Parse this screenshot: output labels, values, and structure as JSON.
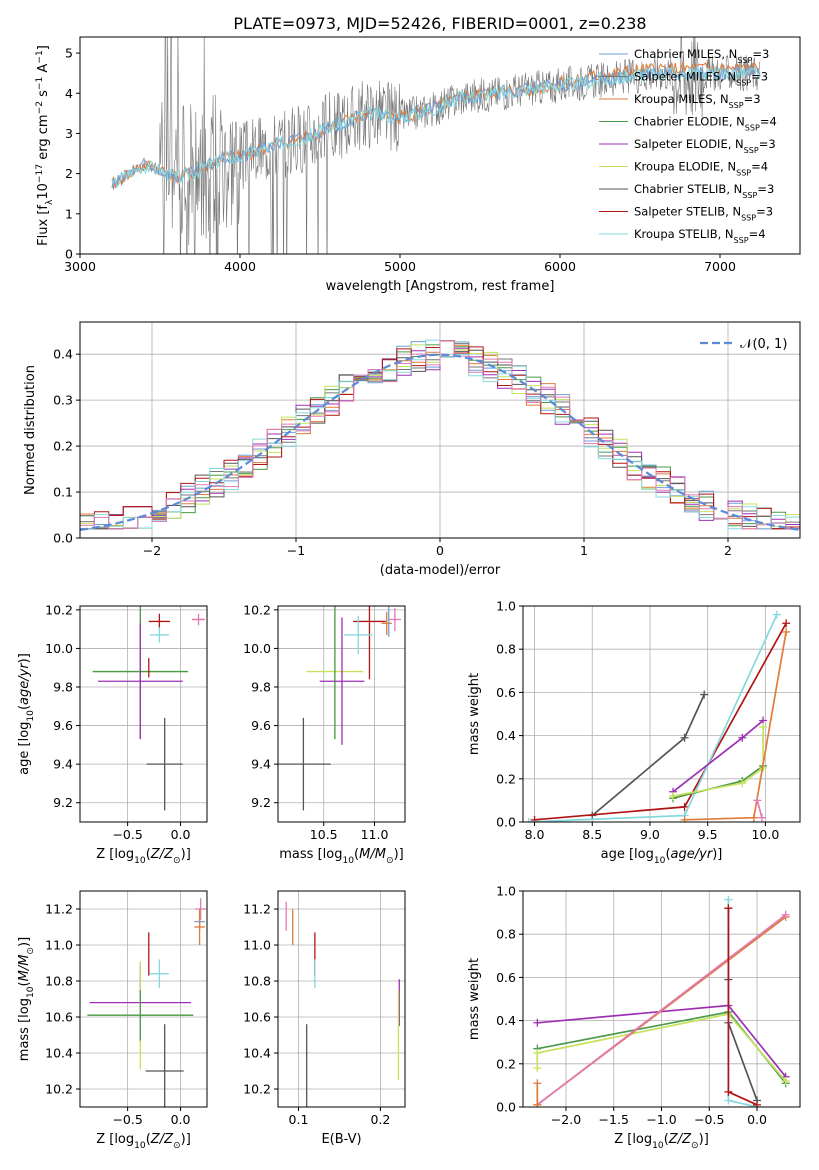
{
  "title": "PLATE=0973, MJD=52426, FIBERID=0001, z=0.238",
  "colors": {
    "Chabrier MILES": "#6f9fd8",
    "Salpeter MILES": "#777777",
    "Kroupa MILES": "#e07b39",
    "Chabrier ELODIE": "#4a9a4a",
    "Salpeter ELODIE": "#9b30b5",
    "Kroupa ELODIE": "#c6e25c",
    "Chabrier STELIB": "#555555",
    "Salpeter STELIB": "#b01515",
    "Kroupa STELIB": "#86d8df",
    "gaussian": "#5a8ad8",
    "pink": "#e07bb5",
    "grid": "#b0b0b0"
  },
  "legend_labels": {
    "Chabrier MILES": [
      "Chabrier MILES, N",
      "SSP",
      "=3"
    ],
    "Salpeter MILES": [
      "Salpeter MILES, N",
      "SSP",
      "=3"
    ],
    "Kroupa MILES": [
      "Kroupa MILES, N",
      "SSP",
      "=3"
    ],
    "Chabrier ELODIE": [
      "Chabrier ELODIE, N",
      "SSP",
      "=4"
    ],
    "Salpeter ELODIE": [
      "Salpeter ELODIE, N",
      "SSP",
      "=3"
    ],
    "Kroupa ELODIE": [
      "Kroupa ELODIE, N",
      "SSP",
      "=4"
    ],
    "Chabrier STELIB": [
      "Chabrier STELIB, N",
      "SSP",
      "=3"
    ],
    "Salpeter STELIB": [
      "Salpeter STELIB, N",
      "SSP",
      "=3"
    ],
    "Kroupa STELIB": [
      "Kroupa STELIB, N",
      "SSP",
      "=4"
    ]
  },
  "chart_data": [
    {
      "id": "spectrum",
      "type": "line",
      "title": "PLATE=0973, MJD=52426, FIBERID=0001, z=0.238",
      "xlabel": "wavelength [Angstrom, rest frame]",
      "ylabel": "Flux [f_λ 10^-17 erg cm^-2 s^-1 A^-1]",
      "xlim": [
        3000,
        7500
      ],
      "ylim": [
        0,
        5.4
      ],
      "xticks": [
        3000,
        4000,
        5000,
        6000,
        7000
      ],
      "yticks": [
        0,
        1,
        2,
        3,
        4,
        5
      ],
      "grid": false,
      "legend": "top-right",
      "observed_trend": {
        "x": [
          3200,
          3300,
          3400,
          3500,
          3600,
          3700,
          3800,
          3900,
          4000,
          4200,
          4400,
          4600,
          4800,
          5000,
          5200,
          5400,
          5600,
          5800,
          6000,
          6200,
          6400,
          6600,
          6800,
          7000,
          7200
        ],
        "y": [
          1.7,
          2.0,
          2.2,
          2.1,
          1.9,
          2.0,
          2.2,
          2.4,
          2.4,
          2.7,
          2.9,
          3.2,
          3.5,
          3.4,
          3.6,
          3.9,
          4.0,
          4.1,
          4.2,
          4.3,
          4.4,
          4.5,
          4.5,
          4.5,
          4.5
        ]
      },
      "model_series_order": [
        "Kroupa MILES",
        "Chabrier MILES",
        "Kroupa STELIB"
      ]
    },
    {
      "id": "residuals",
      "type": "histogram",
      "xlabel": "(data-model)/error",
      "ylabel": "Normed distribution",
      "xlim": [
        -2.5,
        2.5
      ],
      "ylim": [
        0,
        0.47
      ],
      "xticks": [
        -2,
        -1,
        0,
        1,
        2
      ],
      "yticks": [
        0.0,
        0.1,
        0.2,
        0.3,
        0.4
      ],
      "grid": true,
      "legend": "top-right",
      "legend_label": "𝒩(0, 1)",
      "bin_width": 0.1,
      "series_order": [
        "Chabrier MILES",
        "Salpeter MILES",
        "Kroupa MILES",
        "Chabrier ELODIE",
        "Salpeter ELODIE",
        "Kroupa ELODIE",
        "Chabrier STELIB",
        "Salpeter STELIB",
        "Kroupa STELIB",
        "pink"
      ]
    },
    {
      "id": "age-vs-Z",
      "type": "errorbar",
      "xlabel": "Z [log10(Z/Z⊙)]",
      "ylabel": "age [log10(age/yr)]",
      "xlim": [
        -0.95,
        0.25
      ],
      "ylim": [
        9.1,
        10.22
      ],
      "xticks": [
        -0.5,
        0.0
      ],
      "yticks": [
        9.2,
        9.4,
        9.6,
        9.8,
        10.0,
        10.2
      ],
      "grid": true,
      "points": [
        {
          "series": "Salpeter STELIB",
          "x": -0.2,
          "xerr": 0.1,
          "y": 10.14,
          "yerr": 0.04
        },
        {
          "series": "Kroupa STELIB",
          "x": -0.2,
          "xerr": 0.09,
          "y": 10.07,
          "yerr": 0.04
        },
        {
          "series": "Kroupa MILES",
          "x": 0.17,
          "xerr": 0.06,
          "y": 10.15,
          "yerr": 0.0
        },
        {
          "series": "pink",
          "x": 0.17,
          "xerr": 0.06,
          "y": 10.15,
          "yerr": 0.03
        },
        {
          "series": "Kroupa ELODIE",
          "x": -0.38,
          "xerr": 0.45,
          "y": 9.88,
          "yerr": 0.35
        },
        {
          "series": "Chabrier ELODIE",
          "x": -0.38,
          "xerr": 0.45,
          "y": 9.88,
          "yerr": 0.35
        },
        {
          "series": "Salpeter ELODIE",
          "x": -0.38,
          "xerr": 0.4,
          "y": 9.83,
          "yerr": 0.3
        },
        {
          "series": "Salpeter STELIB",
          "x": -0.3,
          "xerr": 0.0,
          "y": 9.9,
          "yerr": 0.05
        },
        {
          "series": "Chabrier STELIB",
          "x": -0.15,
          "xerr": 0.17,
          "y": 9.4,
          "yerr": 0.24
        }
      ]
    },
    {
      "id": "age-vs-mass",
      "type": "errorbar",
      "xlabel": "mass [log10(M/M⊙)]",
      "ylabel": "",
      "xlim": [
        10.05,
        11.3
      ],
      "ylim": [
        9.1,
        10.22
      ],
      "xticks": [
        10.5,
        11.0
      ],
      "yticks": [
        9.2,
        9.4,
        9.6,
        9.8,
        10.0,
        10.2
      ],
      "grid": true,
      "points": [
        {
          "series": "Salpeter STELIB",
          "x": 10.95,
          "xerr": 0.16,
          "y": 10.14,
          "yerr": 0.3
        },
        {
          "series": "Kroupa STELIB",
          "x": 10.84,
          "xerr": 0.14,
          "y": 10.07,
          "yerr": 0.1
        },
        {
          "series": "pink",
          "x": 11.2,
          "xerr": 0.06,
          "y": 10.15,
          "yerr": 0.06
        },
        {
          "series": "Kroupa MILES",
          "x": 11.12,
          "xerr": 0.05,
          "y": 10.13,
          "yerr": 0.06
        },
        {
          "series": "Chabrier MILES",
          "x": 11.14,
          "xerr": 0.0,
          "y": 10.14,
          "yerr": 0.08
        },
        {
          "series": "Kroupa ELODIE",
          "x": 10.61,
          "xerr": 0.28,
          "y": 9.88,
          "yerr": 0.35
        },
        {
          "series": "Chabrier ELODIE",
          "x": 10.61,
          "xerr": 0.0,
          "y": 9.88,
          "yerr": 0.35
        },
        {
          "series": "Salpeter ELODIE",
          "x": 10.68,
          "xerr": 0.22,
          "y": 9.83,
          "yerr": 0.33
        },
        {
          "series": "Chabrier STELIB",
          "x": 10.3,
          "xerr": 0.27,
          "y": 9.4,
          "yerr": 0.24
        }
      ]
    },
    {
      "id": "massweight-vs-age",
      "type": "line",
      "xlabel": "age [log10(age/yr)]",
      "ylabel": "mass weight",
      "xlim": [
        7.9,
        10.3
      ],
      "ylim": [
        0,
        1.0
      ],
      "xticks": [
        8.0,
        8.5,
        9.0,
        9.5,
        10.0
      ],
      "yticks": [
        0.0,
        0.2,
        0.4,
        0.6,
        0.8,
        1.0
      ],
      "grid": true,
      "series": [
        {
          "series": "Chabrier STELIB",
          "x": [
            8.5,
            9.3,
            9.47
          ],
          "y": [
            0.03,
            0.39,
            0.59
          ]
        },
        {
          "series": "Salpeter STELIB",
          "x": [
            8.0,
            9.3,
            10.18
          ],
          "y": [
            0.01,
            0.07,
            0.92
          ]
        },
        {
          "series": "Kroupa STELIB",
          "x": [
            7.95,
            9.3,
            10.1
          ],
          "y": [
            0.0,
            0.03,
            0.96
          ]
        },
        {
          "series": "Salpeter ELODIE",
          "x": [
            9.2,
            9.8,
            9.98
          ],
          "y": [
            0.14,
            0.39,
            0.47
          ]
        },
        {
          "series": "Chabrier ELODIE",
          "x": [
            9.2,
            9.8,
            9.98
          ],
          "y": [
            0.11,
            0.19,
            0.26
          ]
        },
        {
          "series": "Kroupa ELODIE",
          "x": [
            9.2,
            9.8,
            9.98,
            9.98
          ],
          "y": [
            0.12,
            0.18,
            0.25,
            0.44
          ]
        },
        {
          "series": "Kroupa MILES",
          "x": [
            9.3,
            9.9,
            10.18
          ],
          "y": [
            0.01,
            0.02,
            0.88
          ]
        },
        {
          "series": "pink",
          "x": [
            9.93,
            9.97
          ],
          "y": [
            0.1,
            0.02
          ]
        }
      ]
    },
    {
      "id": "mass-vs-Z",
      "type": "errorbar",
      "xlabel": "Z [log10(Z/Z⊙)]",
      "ylabel": "mass [log10(M/M⊙)]",
      "xlim": [
        -0.95,
        0.25
      ],
      "ylim": [
        10.1,
        11.3
      ],
      "xticks": [
        -0.5,
        0.0
      ],
      "yticks": [
        10.2,
        10.4,
        10.6,
        10.8,
        11.0,
        11.2
      ],
      "grid": true,
      "points": [
        {
          "series": "pink",
          "x": 0.19,
          "xerr": 0.05,
          "y": 11.2,
          "yerr": 0.06
        },
        {
          "series": "Chabrier MILES",
          "x": 0.18,
          "xerr": 0.05,
          "y": 11.13,
          "yerr": 0.05
        },
        {
          "series": "Kroupa MILES",
          "x": 0.18,
          "xerr": 0.05,
          "y": 11.1,
          "yerr": 0.1
        },
        {
          "series": "Salpeter STELIB",
          "x": -0.3,
          "xerr": 0.0,
          "y": 10.95,
          "yerr": 0.12
        },
        {
          "series": "Kroupa STELIB",
          "x": -0.2,
          "xerr": 0.09,
          "y": 10.84,
          "yerr": 0.08
        },
        {
          "series": "Salpeter ELODIE",
          "x": -0.38,
          "xerr": 0.48,
          "y": 10.68,
          "yerr": 0.22
        },
        {
          "series": "Kroupa ELODIE",
          "x": -0.38,
          "xerr": 0.5,
          "y": 10.61,
          "yerr": 0.3
        },
        {
          "series": "Chabrier ELODIE",
          "x": -0.38,
          "xerr": 0.5,
          "y": 10.61,
          "yerr": 0.14
        },
        {
          "series": "Chabrier STELIB",
          "x": -0.15,
          "xerr": 0.18,
          "y": 10.3,
          "yerr": 0.26
        }
      ]
    },
    {
      "id": "mass-vs-ebv",
      "type": "errorbar",
      "xlabel": "E(B-V)",
      "ylabel": "",
      "xlim": [
        0.075,
        0.23
      ],
      "ylim": [
        10.1,
        11.3
      ],
      "xticks": [
        0.1,
        0.2
      ],
      "yticks": [
        10.2,
        10.4,
        10.6,
        10.8,
        11.0,
        11.2
      ],
      "grid": true,
      "points": [
        {
          "series": "pink",
          "x": 0.085,
          "xerr": 0.0,
          "y": 11.16,
          "yerr": 0.08
        },
        {
          "series": "Kroupa MILES",
          "x": 0.093,
          "xerr": 0.0,
          "y": 11.1,
          "yerr": 0.1
        },
        {
          "series": "Salpeter STELIB",
          "x": 0.12,
          "xerr": 0.0,
          "y": 10.95,
          "yerr": 0.12
        },
        {
          "series": "Kroupa STELIB",
          "x": 0.12,
          "xerr": 0.0,
          "y": 10.84,
          "yerr": 0.08
        },
        {
          "series": "Chabrier STELIB",
          "x": 0.11,
          "xerr": 0.0,
          "y": 10.3,
          "yerr": 0.26
        },
        {
          "series": "Salpeter ELODIE",
          "x": 0.223,
          "xerr": 0.0,
          "y": 10.68,
          "yerr": 0.13
        },
        {
          "series": "Kroupa ELODIE",
          "x": 0.222,
          "xerr": 0.0,
          "y": 10.5,
          "yerr": 0.25
        }
      ]
    },
    {
      "id": "massweight-vs-Z",
      "type": "line",
      "xlabel": "Z [log10(Z/Z⊙)]",
      "ylabel": "mass weight",
      "xlim": [
        -2.45,
        0.45
      ],
      "ylim": [
        0,
        1.0
      ],
      "xticks": [
        -2.0,
        -1.5,
        -1.0,
        -0.5,
        0.0
      ],
      "yticks": [
        0.0,
        0.2,
        0.4,
        0.6,
        0.8,
        1.0
      ],
      "grid": true,
      "series": [
        {
          "series": "Salpeter ELODIE",
          "x": [
            -2.3,
            -0.3,
            0.3
          ],
          "y": [
            0.39,
            0.47,
            0.14
          ]
        },
        {
          "series": "Chabrier ELODIE",
          "x": [
            -2.3,
            -0.3,
            0.3
          ],
          "y": [
            0.27,
            0.44,
            0.11
          ]
        },
        {
          "series": "Kroupa ELODIE",
          "x": [
            -2.3,
            -0.3,
            0.3
          ],
          "y": [
            0.25,
            0.43,
            0.12
          ]
        },
        {
          "series": "Kroupa ELODIE",
          "x": [
            -2.3,
            -2.3
          ],
          "y": [
            0.18,
            0.25
          ]
        },
        {
          "series": "Kroupa MILES",
          "x": [
            -2.3,
            0.3
          ],
          "y": [
            0.01,
            0.88
          ]
        },
        {
          "series": "pink",
          "x": [
            -2.3,
            0.3
          ],
          "y": [
            0.01,
            0.89
          ]
        },
        {
          "series": "Kroupa MILES",
          "x": [
            -2.3,
            -2.3
          ],
          "y": [
            0.01,
            0.11
          ]
        },
        {
          "series": "Chabrier STELIB",
          "x": [
            -0.3,
            -0.3,
            -0.3,
            0.0
          ],
          "y": [
            0.92,
            0.59,
            0.39,
            0.03
          ]
        },
        {
          "series": "Kroupa STELIB",
          "x": [
            -0.3,
            -0.3,
            0.0
          ],
          "y": [
            0.96,
            0.03,
            0.0
          ]
        },
        {
          "series": "Salpeter STELIB",
          "x": [
            -0.3,
            -0.3,
            0.0
          ],
          "y": [
            0.92,
            0.07,
            0.01
          ]
        }
      ]
    }
  ]
}
